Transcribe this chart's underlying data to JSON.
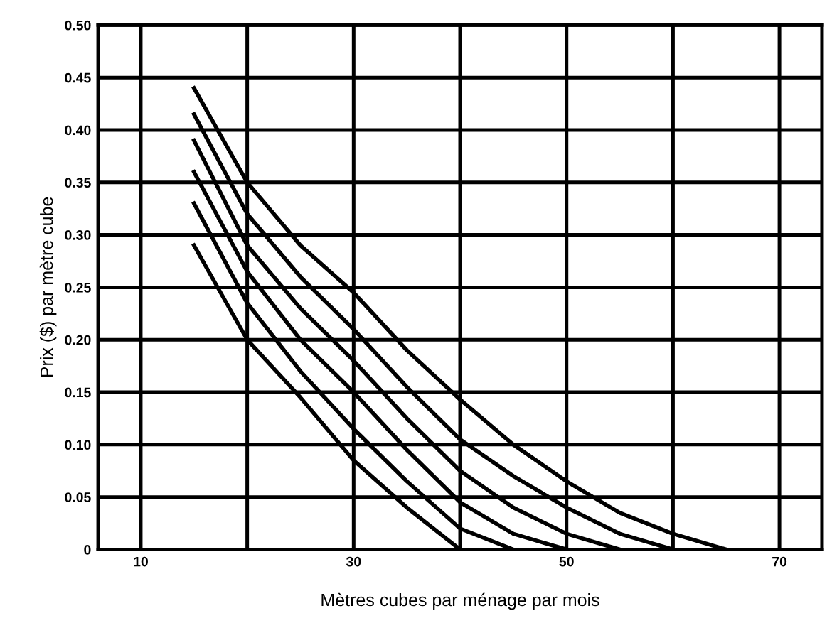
{
  "chart_data": {
    "type": "line",
    "xlabel": "Mètres cubes par ménage par mois",
    "ylabel": "Prix ($) par mètre cube",
    "xlim": [
      6,
      74
    ],
    "ylim": [
      0,
      0.5
    ],
    "xticks": [
      {
        "value": 10,
        "label": "10"
      },
      {
        "value": 20,
        "label": null
      },
      {
        "value": 30,
        "label": "30"
      },
      {
        "value": 40,
        "label": null
      },
      {
        "value": 50,
        "label": "50"
      },
      {
        "value": 60,
        "label": null
      },
      {
        "value": 70,
        "label": "70"
      }
    ],
    "yticks": [
      {
        "value": 0,
        "label": "0"
      },
      {
        "value": 0.05,
        "label": "0.05"
      },
      {
        "value": 0.1,
        "label": "0.10"
      },
      {
        "value": 0.15,
        "label": "0.15"
      },
      {
        "value": 0.2,
        "label": "0.20"
      },
      {
        "value": 0.25,
        "label": "0.25"
      },
      {
        "value": 0.3,
        "label": "0.30"
      },
      {
        "value": 0.35,
        "label": "0.35"
      },
      {
        "value": 0.4,
        "label": "0.40"
      },
      {
        "value": 0.45,
        "label": "0.45"
      },
      {
        "value": 0.5,
        "label": "0.50"
      }
    ],
    "grid": true,
    "marker": "none",
    "line_style": "solid",
    "series": [
      {
        "color": "#000000",
        "x": [
          15,
          20,
          25,
          30,
          35,
          40,
          45,
          50,
          55,
          60,
          65
        ],
        "values": [
          0.44,
          0.35,
          0.29,
          0.245,
          0.19,
          0.143,
          0.1,
          0.065,
          0.035,
          0.015,
          0
        ]
      },
      {
        "color": "#000000",
        "x": [
          15,
          20,
          25,
          30,
          35,
          40,
          45,
          50,
          55,
          60
        ],
        "values": [
          0.415,
          0.32,
          0.26,
          0.21,
          0.155,
          0.105,
          0.07,
          0.04,
          0.015,
          0
        ]
      },
      {
        "color": "#000000",
        "x": [
          15,
          20,
          25,
          30,
          35,
          40,
          45,
          50,
          55
        ],
        "values": [
          0.39,
          0.29,
          0.23,
          0.18,
          0.125,
          0.075,
          0.04,
          0.015,
          0
        ]
      },
      {
        "color": "#000000",
        "x": [
          15,
          20,
          25,
          30,
          35,
          40,
          45,
          50
        ],
        "values": [
          0.36,
          0.265,
          0.2,
          0.15,
          0.095,
          0.045,
          0.015,
          0
        ]
      },
      {
        "color": "#000000",
        "x": [
          15,
          20,
          25,
          30,
          35,
          40,
          45
        ],
        "values": [
          0.33,
          0.235,
          0.17,
          0.115,
          0.065,
          0.02,
          0
        ]
      },
      {
        "color": "#000000",
        "x": [
          15,
          20,
          25,
          30,
          35,
          40
        ],
        "values": [
          0.29,
          0.2,
          0.145,
          0.085,
          0.04,
          0
        ]
      }
    ]
  }
}
